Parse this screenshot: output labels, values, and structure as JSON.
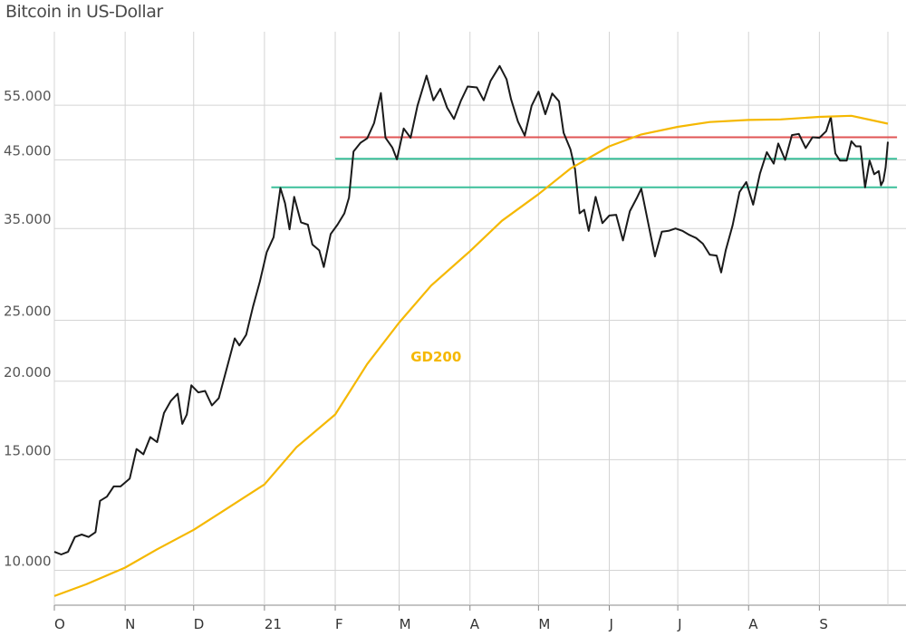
{
  "chart_data": {
    "type": "line",
    "title": "Bitcoin in US-Dollar",
    "xlabel": "",
    "ylabel": "",
    "y_scale": "log",
    "ylim": [
      8800,
      72000
    ],
    "y_ticks": [
      {
        "value": 10000,
        "label": "10.000"
      },
      {
        "value": 15000,
        "label": "15.000"
      },
      {
        "value": 20000,
        "label": "20.000"
      },
      {
        "value": 25000,
        "label": "25.000"
      },
      {
        "value": 35000,
        "label": "35.000"
      },
      {
        "value": 45000,
        "label": "45.000"
      },
      {
        "value": 55000,
        "label": "55.000"
      }
    ],
    "x_ticks": [
      {
        "date": "2020-10-01",
        "label": "O"
      },
      {
        "date": "2020-11-01",
        "label": "N"
      },
      {
        "date": "2020-12-01",
        "label": "D"
      },
      {
        "date": "2021-01-01",
        "label": "21"
      },
      {
        "date": "2021-02-01",
        "label": "F"
      },
      {
        "date": "2021-03-01",
        "label": "M"
      },
      {
        "date": "2021-04-01",
        "label": "A"
      },
      {
        "date": "2021-05-01",
        "label": "M"
      },
      {
        "date": "2021-06-01",
        "label": "J"
      },
      {
        "date": "2021-07-01",
        "label": "J"
      },
      {
        "date": "2021-08-01",
        "label": "A"
      },
      {
        "date": "2021-09-01",
        "label": "S"
      }
    ],
    "xlim": [
      "2020-10-01",
      "2021-10-01"
    ],
    "grid": true,
    "series": [
      {
        "name": "",
        "color": "#1a1a1a",
        "points": [
          [
            "2020-10-01",
            10700
          ],
          [
            "2020-10-04",
            10600
          ],
          [
            "2020-10-07",
            10700
          ],
          [
            "2020-10-10",
            11300
          ],
          [
            "2020-10-13",
            11400
          ],
          [
            "2020-10-16",
            11300
          ],
          [
            "2020-10-19",
            11500
          ],
          [
            "2020-10-21",
            12900
          ],
          [
            "2020-10-24",
            13100
          ],
          [
            "2020-10-27",
            13600
          ],
          [
            "2020-10-30",
            13600
          ],
          [
            "2020-11-03",
            14000
          ],
          [
            "2020-11-06",
            15600
          ],
          [
            "2020-11-09",
            15300
          ],
          [
            "2020-11-12",
            16300
          ],
          [
            "2020-11-15",
            16000
          ],
          [
            "2020-11-18",
            17800
          ],
          [
            "2020-11-21",
            18600
          ],
          [
            "2020-11-24",
            19100
          ],
          [
            "2020-11-26",
            17100
          ],
          [
            "2020-11-28",
            17700
          ],
          [
            "2020-11-30",
            19700
          ],
          [
            "2020-12-03",
            19200
          ],
          [
            "2020-12-06",
            19300
          ],
          [
            "2020-12-09",
            18300
          ],
          [
            "2020-12-12",
            18800
          ],
          [
            "2020-12-16",
            21300
          ],
          [
            "2020-12-19",
            23400
          ],
          [
            "2020-12-21",
            22800
          ],
          [
            "2020-12-24",
            23700
          ],
          [
            "2020-12-27",
            26300
          ],
          [
            "2020-12-30",
            28800
          ],
          [
            "2021-01-02",
            32100
          ],
          [
            "2021-01-05",
            33900
          ],
          [
            "2021-01-08",
            40600
          ],
          [
            "2021-01-10",
            38400
          ],
          [
            "2021-01-12",
            34900
          ],
          [
            "2021-01-14",
            39300
          ],
          [
            "2021-01-17",
            35800
          ],
          [
            "2021-01-20",
            35500
          ],
          [
            "2021-01-22",
            33000
          ],
          [
            "2021-01-25",
            32300
          ],
          [
            "2021-01-27",
            30400
          ],
          [
            "2021-01-30",
            34300
          ],
          [
            "2021-02-02",
            35500
          ],
          [
            "2021-02-05",
            37000
          ],
          [
            "2021-02-07",
            39200
          ],
          [
            "2021-02-09",
            46400
          ],
          [
            "2021-02-12",
            47900
          ],
          [
            "2021-02-15",
            48700
          ],
          [
            "2021-02-18",
            51500
          ],
          [
            "2021-02-21",
            57500
          ],
          [
            "2021-02-23",
            48800
          ],
          [
            "2021-02-26",
            47100
          ],
          [
            "2021-02-28",
            45100
          ],
          [
            "2021-03-03",
            50500
          ],
          [
            "2021-03-06",
            48800
          ],
          [
            "2021-03-09",
            54900
          ],
          [
            "2021-03-13",
            61300
          ],
          [
            "2021-03-16",
            56000
          ],
          [
            "2021-03-19",
            58400
          ],
          [
            "2021-03-22",
            54500
          ],
          [
            "2021-03-25",
            52300
          ],
          [
            "2021-03-28",
            55900
          ],
          [
            "2021-03-31",
            58900
          ],
          [
            "2021-04-04",
            58700
          ],
          [
            "2021-04-07",
            56000
          ],
          [
            "2021-04-10",
            60100
          ],
          [
            "2021-04-14",
            63500
          ],
          [
            "2021-04-17",
            60500
          ],
          [
            "2021-04-19",
            56200
          ],
          [
            "2021-04-22",
            51800
          ],
          [
            "2021-04-25",
            49200
          ],
          [
            "2021-04-28",
            54900
          ],
          [
            "2021-05-01",
            57800
          ],
          [
            "2021-05-04",
            53200
          ],
          [
            "2021-05-07",
            57400
          ],
          [
            "2021-05-10",
            55800
          ],
          [
            "2021-05-12",
            49700
          ],
          [
            "2021-05-15",
            46800
          ],
          [
            "2021-05-17",
            43500
          ],
          [
            "2021-05-19",
            37000
          ],
          [
            "2021-05-21",
            37500
          ],
          [
            "2021-05-23",
            34700
          ],
          [
            "2021-05-26",
            39300
          ],
          [
            "2021-05-29",
            35700
          ],
          [
            "2021-06-01",
            36700
          ],
          [
            "2021-06-04",
            36800
          ],
          [
            "2021-06-07",
            33500
          ],
          [
            "2021-06-10",
            37300
          ],
          [
            "2021-06-13",
            39100
          ],
          [
            "2021-06-15",
            40500
          ],
          [
            "2021-06-18",
            35800
          ],
          [
            "2021-06-21",
            31600
          ],
          [
            "2021-06-24",
            34600
          ],
          [
            "2021-06-27",
            34700
          ],
          [
            "2021-06-30",
            35000
          ],
          [
            "2021-07-03",
            34700
          ],
          [
            "2021-07-06",
            34200
          ],
          [
            "2021-07-09",
            33800
          ],
          [
            "2021-07-12",
            33100
          ],
          [
            "2021-07-15",
            31800
          ],
          [
            "2021-07-18",
            31700
          ],
          [
            "2021-07-20",
            29800
          ],
          [
            "2021-07-22",
            32300
          ],
          [
            "2021-07-25",
            35400
          ],
          [
            "2021-07-28",
            40000
          ],
          [
            "2021-07-31",
            41500
          ],
          [
            "2021-08-03",
            38200
          ],
          [
            "2021-08-06",
            42800
          ],
          [
            "2021-08-09",
            46300
          ],
          [
            "2021-08-12",
            44400
          ],
          [
            "2021-08-14",
            47800
          ],
          [
            "2021-08-17",
            45000
          ],
          [
            "2021-08-20",
            49300
          ],
          [
            "2021-08-23",
            49500
          ],
          [
            "2021-08-26",
            47000
          ],
          [
            "2021-08-29",
            48900
          ],
          [
            "2021-09-01",
            48800
          ],
          [
            "2021-09-04",
            50000
          ],
          [
            "2021-09-06",
            52700
          ],
          [
            "2021-09-08",
            46100
          ],
          [
            "2021-09-10",
            44900
          ],
          [
            "2021-09-13",
            44900
          ],
          [
            "2021-09-15",
            48200
          ],
          [
            "2021-09-17",
            47300
          ],
          [
            "2021-09-19",
            47300
          ],
          [
            "2021-09-21",
            40700
          ],
          [
            "2021-09-23",
            44900
          ],
          [
            "2021-09-25",
            42700
          ],
          [
            "2021-09-27",
            43200
          ],
          [
            "2021-09-28",
            41000
          ],
          [
            "2021-09-29",
            41700
          ],
          [
            "2021-09-30",
            43800
          ],
          [
            "2021-10-01",
            48100
          ]
        ]
      },
      {
        "name": "GD200",
        "color": "#f5b800",
        "points": [
          [
            "2020-10-01",
            9100
          ],
          [
            "2020-10-15",
            9500
          ],
          [
            "2020-11-01",
            10100
          ],
          [
            "2020-11-15",
            10800
          ],
          [
            "2020-12-01",
            11600
          ],
          [
            "2020-12-15",
            12500
          ],
          [
            "2021-01-01",
            13700
          ],
          [
            "2021-01-15",
            15700
          ],
          [
            "2021-02-01",
            17700
          ],
          [
            "2021-02-15",
            21300
          ],
          [
            "2021-03-01",
            24800
          ],
          [
            "2021-03-15",
            28400
          ],
          [
            "2021-04-01",
            32200
          ],
          [
            "2021-04-15",
            36000
          ],
          [
            "2021-05-01",
            39700
          ],
          [
            "2021-05-15",
            43600
          ],
          [
            "2021-06-01",
            47300
          ],
          [
            "2021-06-15",
            49400
          ],
          [
            "2021-07-01",
            50800
          ],
          [
            "2021-07-15",
            51700
          ],
          [
            "2021-08-01",
            52100
          ],
          [
            "2021-08-15",
            52200
          ],
          [
            "2021-09-01",
            52700
          ],
          [
            "2021-09-15",
            52900
          ],
          [
            "2021-10-01",
            51400
          ]
        ]
      }
    ],
    "hlines": [
      {
        "value": 48900,
        "from": "2021-02-03",
        "to": "2021-10-05",
        "color": "#e05555"
      },
      {
        "value": 45200,
        "from": "2021-02-01",
        "to": "2021-10-05",
        "color": "#3cbf9a"
      },
      {
        "value": 40700,
        "from": "2021-01-04",
        "to": "2021-10-05",
        "color": "#3cbf9a"
      }
    ],
    "annotations": [
      {
        "text": "GD200",
        "date": "2021-03-06",
        "value": 21500,
        "color": "#f5b800"
      }
    ]
  }
}
